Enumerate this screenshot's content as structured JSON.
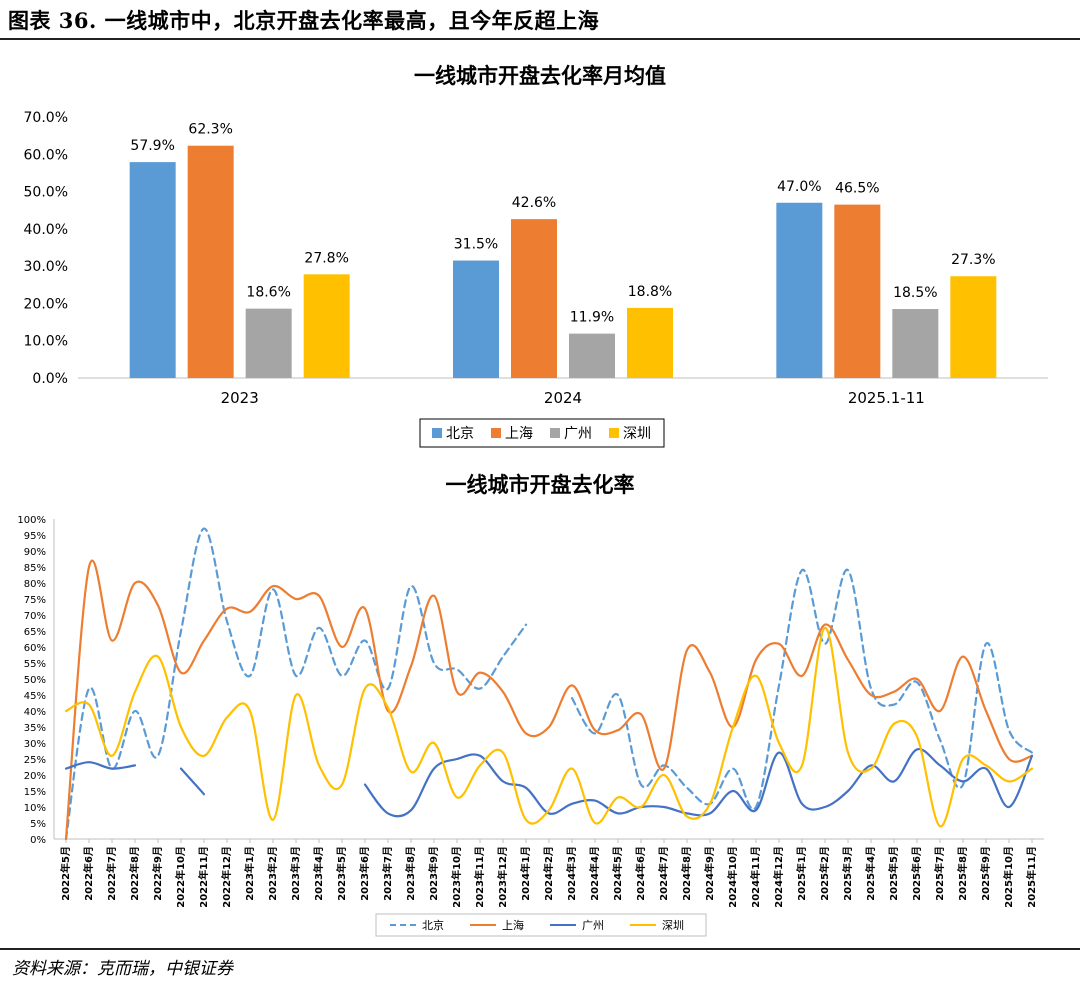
{
  "figure": {
    "title": "图表 36. 一线城市中，北京开盘去化率最高，且今年反超上海",
    "source": "资料来源：克而瑞，中银证券"
  },
  "chart_data": [
    {
      "type": "bar",
      "title": "一线城市开盘去化率月均值",
      "categories": [
        "2023",
        "2024",
        "2025.1-11"
      ],
      "series": [
        {
          "name": "北京",
          "color": "#5B9BD5",
          "values": [
            57.9,
            31.5,
            47.0
          ],
          "labels": [
            "57.9%",
            "31.5%",
            "47.0%"
          ]
        },
        {
          "name": "上海",
          "color": "#ED7D31",
          "values": [
            62.3,
            42.6,
            46.5
          ],
          "labels": [
            "62.3%",
            "42.6%",
            "46.5%"
          ]
        },
        {
          "name": "广州",
          "color": "#A5A5A5",
          "values": [
            18.6,
            11.9,
            18.5
          ],
          "labels": [
            "18.6%",
            "11.9%",
            "18.5%"
          ]
        },
        {
          "name": "深圳",
          "color": "#FFC000",
          "values": [
            27.8,
            18.8,
            27.3
          ],
          "labels": [
            "27.8%",
            "18.8%",
            "27.3%"
          ]
        }
      ],
      "ylim": [
        0,
        70
      ],
      "yticks": [
        "0.0%",
        "10.0%",
        "20.0%",
        "30.0%",
        "40.0%",
        "50.0%",
        "60.0%",
        "70.0%"
      ],
      "grid": false,
      "legend": "bottom"
    },
    {
      "type": "line",
      "title": "一线城市开盘去化率",
      "x": [
        "2022年5月",
        "2022年6月",
        "2022年7月",
        "2022年8月",
        "2022年9月",
        "2022年10月",
        "2022年11月",
        "2022年12月",
        "2023年1月",
        "2023年2月",
        "2023年3月",
        "2023年4月",
        "2023年5月",
        "2023年6月",
        "2023年7月",
        "2023年8月",
        "2023年9月",
        "2023年10月",
        "2023年11月",
        "2023年12月",
        "2024年1月",
        "2024年2月",
        "2024年3月",
        "2024年4月",
        "2024年5月",
        "2024年6月",
        "2024年7月",
        "2024年8月",
        "2024年9月",
        "2024年10月",
        "2024年11月",
        "2024年12月",
        "2025年1月",
        "2025年2月",
        "2025年3月",
        "2025年4月",
        "2025年5月",
        "2025年6月",
        "2025年7月",
        "2025年8月",
        "2025年9月",
        "2025年10月",
        "2025年11月"
      ],
      "ylim": [
        0,
        100
      ],
      "yticks": [
        "0%",
        "5%",
        "10%",
        "15%",
        "20%",
        "25%",
        "30%",
        "35%",
        "40%",
        "45%",
        "50%",
        "55%",
        "60%",
        "65%",
        "70%",
        "75%",
        "80%",
        "85%",
        "90%",
        "95%",
        "100%"
      ],
      "series": [
        {
          "name": "北京",
          "color": "#5B9BD5",
          "dashed": true,
          "values": [
            0,
            47,
            22,
            40,
            26,
            65,
            97,
            68,
            51,
            78,
            51,
            66,
            51,
            62,
            47,
            79,
            55,
            53,
            47,
            57,
            67,
            null,
            44,
            33,
            45,
            17,
            23,
            16,
            11,
            22,
            10,
            48,
            84,
            61,
            84,
            47,
            42,
            49,
            31,
            17,
            61,
            34,
            27
          ]
        },
        {
          "name": "上海",
          "color": "#ED7D31",
          "dashed": false,
          "values": [
            0,
            85,
            62,
            80,
            73,
            52,
            62,
            72,
            71,
            79,
            75,
            76,
            60,
            72,
            40,
            54,
            76,
            46,
            52,
            46,
            33,
            35,
            48,
            34,
            34,
            39,
            22,
            59,
            52,
            35,
            56,
            61,
            51,
            67,
            56,
            45,
            46,
            50,
            40,
            57,
            40,
            25,
            26
          ]
        },
        {
          "name": "广州",
          "color": "#4472C4",
          "dashed": false,
          "values": [
            22,
            24,
            22,
            23,
            null,
            22,
            14,
            null,
            null,
            null,
            null,
            null,
            null,
            17,
            8,
            9,
            22,
            25,
            26,
            18,
            16,
            8,
            11,
            12,
            8,
            10,
            10,
            8,
            8,
            15,
            9,
            27,
            11,
            10,
            15,
            23,
            18,
            28,
            23,
            18,
            22,
            10,
            26
          ]
        },
        {
          "name": "深圳",
          "color": "#FFC000",
          "dashed": false,
          "values": [
            40,
            42,
            26,
            46,
            57,
            35,
            26,
            38,
            40,
            6,
            45,
            23,
            17,
            47,
            41,
            21,
            30,
            13,
            23,
            27,
            6,
            9,
            22,
            5,
            13,
            10,
            20,
            7,
            11,
            35,
            51,
            30,
            23,
            66,
            27,
            22,
            36,
            32,
            4,
            25,
            23,
            18,
            22
          ]
        }
      ],
      "grid": false,
      "legend": "bottom"
    }
  ]
}
